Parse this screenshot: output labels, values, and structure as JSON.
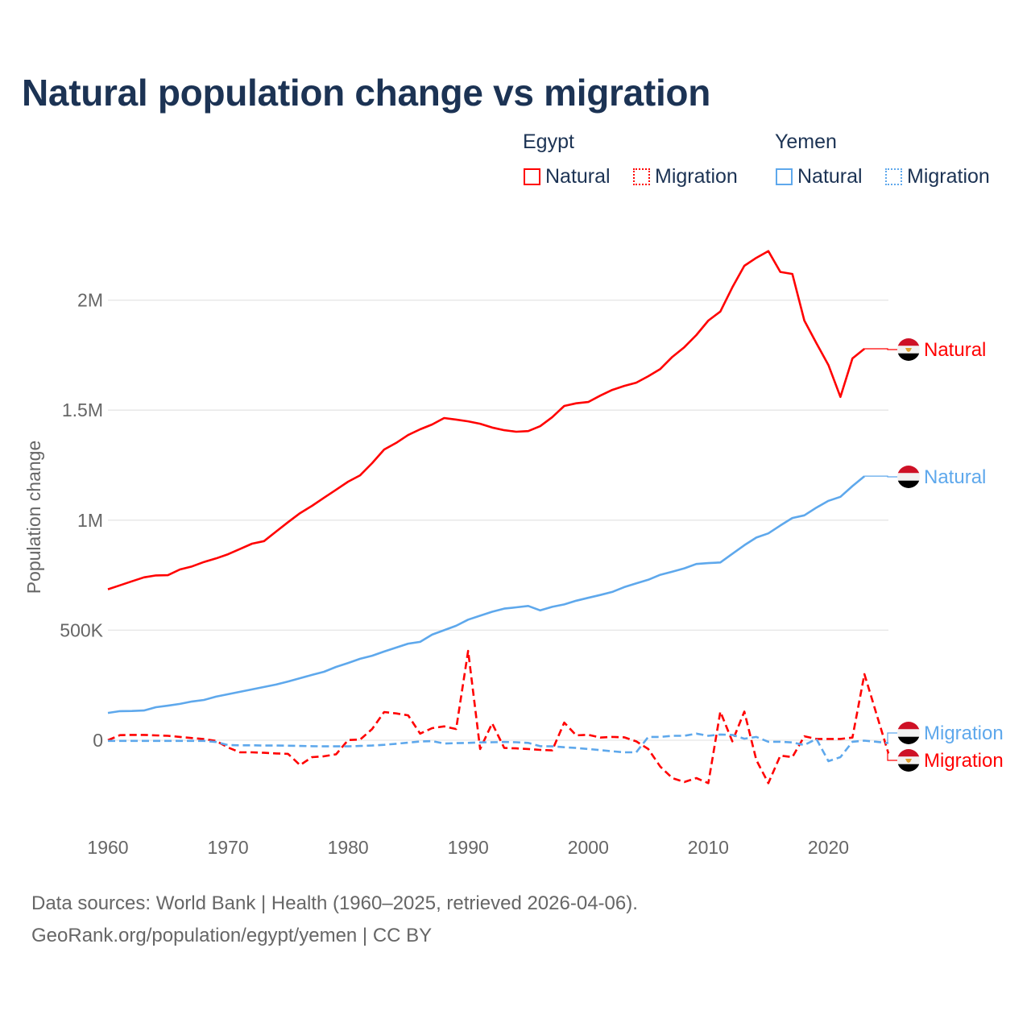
{
  "title": "Natural population change vs migration",
  "legend": {
    "groups": [
      {
        "name": "Egypt",
        "items": [
          {
            "label": "Natural",
            "style": "solid"
          },
          {
            "label": "Migration",
            "style": "dotted"
          }
        ],
        "color": "#ff0000"
      },
      {
        "name": "Yemen",
        "items": [
          {
            "label": "Natural",
            "style": "solid"
          },
          {
            "label": "Migration",
            "style": "dotted"
          }
        ],
        "color": "#5ea8ec"
      }
    ]
  },
  "footer": {
    "line1": "Data sources: World Bank | Health (1960–2025, retrieved 2026-04-06).",
    "line2": "GeoRank.org/population/egypt/yemen | CC BY"
  },
  "colors": {
    "egypt": "#ff0000",
    "yemen": "#5ea8ec",
    "title": "#1c3354",
    "grid": "#e6e6e6",
    "axis_text": "#666666"
  },
  "chart_data": {
    "type": "line",
    "title": "Natural population change vs migration",
    "xlabel": "",
    "ylabel": "Population change",
    "xlim": [
      1960,
      2025
    ],
    "ylim": [
      -300000,
      2300000
    ],
    "x_ticks": [
      1960,
      1970,
      1980,
      1990,
      2000,
      2010,
      2020
    ],
    "x_tick_labels": [
      "1960",
      "1970",
      "1980",
      "1990",
      "2000",
      "2010",
      "2020"
    ],
    "y_ticks": [
      0,
      500000,
      1000000,
      1500000,
      2000000
    ],
    "y_tick_labels": [
      "0",
      "500K",
      "1M",
      "1.5M",
      "2M"
    ],
    "grid": true,
    "legend_position": "top-right",
    "series": [
      {
        "name": "Egypt Natural",
        "country": "Egypt",
        "end_label": "Natural",
        "color": "#ff0000",
        "dash": "solid",
        "flag": "egypt",
        "start_year": 1960,
        "values": [
          686000,
          704000,
          722000,
          740000,
          749000,
          750000,
          776000,
          790000,
          810000,
          826000,
          845000,
          869000,
          893000,
          905000,
          948000,
          991000,
          1032000,
          1065000,
          1102000,
          1138000,
          1175000,
          1204000,
          1259000,
          1321000,
          1351000,
          1387000,
          1413000,
          1435000,
          1464000,
          1457000,
          1449000,
          1438000,
          1421000,
          1409000,
          1402000,
          1405000,
          1427000,
          1468000,
          1519000,
          1531000,
          1537000,
          1566000,
          1592000,
          1610000,
          1625000,
          1654000,
          1687000,
          1742000,
          1786000,
          1841000,
          1907000,
          1948000,
          2058000,
          2156000,
          2192000,
          2223000,
          2128000,
          2119000,
          1907000,
          1804000,
          1705000,
          1560000,
          1735000,
          1779000
        ]
      },
      {
        "name": "Yemen Natural",
        "country": "Yemen",
        "end_label": "Natural",
        "color": "#5ea8ec",
        "dash": "solid",
        "flag": "yemen",
        "start_year": 1960,
        "values": [
          124000,
          132000,
          133000,
          135000,
          150000,
          157000,
          165000,
          176000,
          183000,
          198000,
          209000,
          220000,
          231000,
          242000,
          253000,
          267000,
          282000,
          297000,
          311000,
          333000,
          351000,
          370000,
          384000,
          403000,
          421000,
          439000,
          447000,
          480000,
          500000,
          520000,
          548000,
          566000,
          584000,
          598000,
          604000,
          610000,
          590000,
          606000,
          617000,
          634000,
          647000,
          660000,
          674000,
          696000,
          713000,
          729000,
          752000,
          766000,
          781000,
          801000,
          805000,
          808000,
          847000,
          886000,
          921000,
          940000,
          976000,
          1010000,
          1022000,
          1057000,
          1088000,
          1106000,
          1155000,
          1200000
        ]
      },
      {
        "name": "Egypt Migration",
        "country": "Egypt",
        "end_label": "Migration",
        "color": "#ff0000",
        "dash": "dashed",
        "flag": "egypt",
        "start_year": 1960,
        "values": [
          0,
          23000,
          24000,
          24000,
          22000,
          20000,
          15000,
          10000,
          5000,
          -3000,
          -33000,
          -55000,
          -55000,
          -57000,
          -60000,
          -62000,
          -113000,
          -77000,
          -73000,
          -64000,
          1000,
          3000,
          51000,
          128000,
          122000,
          113000,
          30000,
          55000,
          63000,
          51000,
          406000,
          -40000,
          77000,
          -35000,
          -37000,
          -40000,
          -44000,
          -46000,
          80000,
          22000,
          25000,
          12000,
          15000,
          13000,
          -5000,
          -40000,
          -120000,
          -172000,
          -190000,
          -172000,
          -195000,
          130000,
          -5000,
          130000,
          -90000,
          -195000,
          -70000,
          -77000,
          18000,
          6000,
          6000,
          6000,
          12000,
          300000,
          120000,
          -60000
        ]
      },
      {
        "name": "Yemen Migration",
        "country": "Yemen",
        "end_label": "Migration",
        "color": "#5ea8ec",
        "dash": "dashed",
        "flag": "yemen",
        "start_year": 1960,
        "values": [
          -3000,
          -3000,
          -3000,
          -3000,
          -3000,
          -3000,
          -3000,
          -3000,
          -3000,
          -8000,
          -22000,
          -23000,
          -23000,
          -24000,
          -24000,
          -25000,
          -26000,
          -27000,
          -28000,
          -28000,
          -28000,
          -26000,
          -24000,
          -21000,
          -16000,
          -11000,
          -6000,
          -4000,
          -15000,
          -13000,
          -12000,
          -10000,
          -9000,
          -8000,
          -9000,
          -12000,
          -27000,
          -28000,
          -32000,
          -35000,
          -40000,
          -45000,
          -50000,
          -55000,
          -55000,
          15000,
          15000,
          20000,
          20000,
          30000,
          20000,
          26000,
          24000,
          7000,
          15000,
          -7000,
          -7000,
          -10000,
          -22000,
          6000,
          -95000,
          -77000,
          -7000,
          -2000,
          -7000,
          -13000
        ]
      }
    ]
  }
}
